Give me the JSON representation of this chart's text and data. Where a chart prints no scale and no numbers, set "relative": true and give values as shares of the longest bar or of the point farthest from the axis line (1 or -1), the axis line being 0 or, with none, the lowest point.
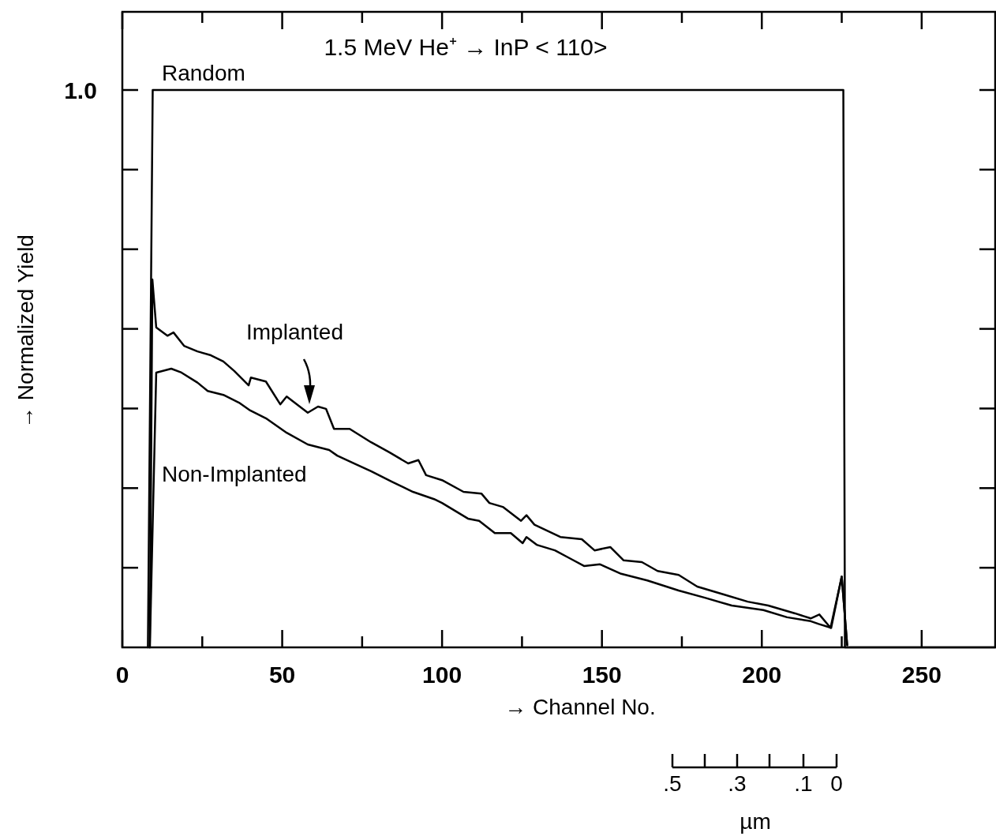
{
  "chart_data": {
    "type": "line",
    "title": "1.5 MeV He⁺ → InP < 110>",
    "xlabel": "→ Channel No.",
    "ylabel": "→ Normalized Yield",
    "xlim": [
      0,
      273
    ],
    "relative": true,
    "xticks": [
      0,
      {
        "value": 25,
        "label": null
      },
      50,
      {
        "value": 75,
        "label": null
      },
      100,
      {
        "value": 125,
        "label": null
      },
      150,
      {
        "value": 175,
        "label": null
      },
      200,
      {
        "value": 225,
        "label": null
      },
      250
    ],
    "grid": false,
    "marker": "none",
    "line_style": "solid",
    "series": [
      {
        "name": "Random",
        "color": "#000000",
        "x": [
          8,
          9.5,
          225.5,
          226,
          273
        ],
        "values": [
          0,
          1,
          1,
          0,
          0
        ]
      },
      {
        "name": "Implanted",
        "color": "#000000",
        "x": [
          8.6,
          9.4,
          10.6,
          14.1,
          16,
          19.3,
          23.5,
          27.7,
          31.6,
          35,
          39.5,
          40.2,
          44.9,
          49.4,
          51.4,
          58,
          61.2,
          63.7,
          66.2,
          71.1,
          77.8,
          83.5,
          89.4,
          92.6,
          95,
          100,
          106.7,
          112.3,
          114.8,
          119,
          124.7,
          126.4,
          128.9,
          137,
          143.7,
          147.7,
          152.6,
          156.8,
          162.5,
          167.4,
          174,
          179.8,
          188.1,
          195.6,
          202,
          210.4,
          215.3,
          218,
          221.5,
          225,
          226.7
        ],
        "values": [
          0,
          0.66,
          0.574,
          0.559,
          0.565,
          0.541,
          0.531,
          0.524,
          0.513,
          0.496,
          0.47,
          0.484,
          0.477,
          0.436,
          0.45,
          0.421,
          0.432,
          0.428,
          0.392,
          0.392,
          0.368,
          0.35,
          0.33,
          0.336,
          0.309,
          0.3,
          0.279,
          0.276,
          0.259,
          0.252,
          0.227,
          0.237,
          0.22,
          0.198,
          0.194,
          0.174,
          0.18,
          0.156,
          0.153,
          0.137,
          0.13,
          0.109,
          0.095,
          0.082,
          0.075,
          0.061,
          0.052,
          0.059,
          0.035,
          0.127,
          0.004
        ]
      },
      {
        "name": "Non-Implanted",
        "color": "#000000",
        "x": [
          8.6,
          10.6,
          15.3,
          18.5,
          23.5,
          26.7,
          31.6,
          36.5,
          40,
          44.9,
          51.4,
          58,
          64.7,
          67.2,
          72.8,
          77.8,
          84.4,
          90.9,
          97.5,
          100,
          108.1,
          111.6,
          116.5,
          121.5,
          125.2,
          126.4,
          129.6,
          135.3,
          140.2,
          144.4,
          149.4,
          156,
          164.2,
          174,
          182.2,
          190.6,
          200.5,
          207.9,
          215.3,
          217.8,
          221.7,
          225,
          226.7
        ],
        "values": [
          0,
          0.493,
          0.5,
          0.493,
          0.475,
          0.46,
          0.453,
          0.439,
          0.425,
          0.411,
          0.385,
          0.364,
          0.354,
          0.344,
          0.329,
          0.316,
          0.297,
          0.279,
          0.266,
          0.259,
          0.231,
          0.227,
          0.205,
          0.205,
          0.187,
          0.198,
          0.184,
          0.174,
          0.159,
          0.146,
          0.149,
          0.132,
          0.12,
          0.102,
          0.089,
          0.075,
          0.067,
          0.054,
          0.047,
          0.042,
          0.035,
          0.127,
          0.004
        ]
      }
    ],
    "annotations": [
      ".5",
      ".3",
      ".1",
      "0",
      "µm",
      "1.0"
    ]
  }
}
